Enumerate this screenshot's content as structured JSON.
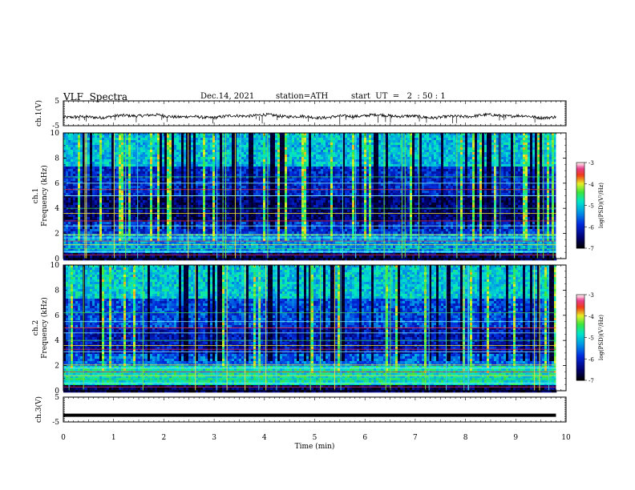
{
  "header": {
    "title": "VLF  Spectra",
    "date": "Dec.14, 2021",
    "station": "station=ATH",
    "start": "start  UT  =   2  : 50 : 1"
  },
  "chart_data": [
    {
      "type": "line",
      "panel": "ch1-waveform",
      "ylabel": "ch.1(V)",
      "yticks": [
        "5",
        "-5"
      ],
      "ylim": [
        -5,
        5
      ],
      "x_end_min": 9.8,
      "description_values": {
        "baseline_V": -1.2,
        "noise_amp_V": 0.6,
        "spike_min_V": -4.2
      }
    },
    {
      "type": "heatmap",
      "panel": "ch1-spectrogram",
      "ylabel": "Frequency  (kHz)",
      "channel_label": "ch.1",
      "yticks": [
        "0",
        "2",
        "4",
        "6",
        "8",
        "10"
      ],
      "ylim": [
        0,
        10
      ],
      "colorbar": {
        "label": "log(PSD)(V²/Hz)",
        "ticks": [
          "-3",
          "-4",
          "-5",
          "-6",
          "-7"
        ],
        "range": [
          -7,
          -3
        ]
      }
    },
    {
      "type": "heatmap",
      "panel": "ch2-spectrogram",
      "ylabel": "Frequency  (kHz)",
      "channel_label": "ch.2",
      "yticks": [
        "0",
        "2",
        "4",
        "6",
        "8",
        "10"
      ],
      "ylim": [
        0,
        10
      ],
      "colorbar": {
        "label": "log(PSD)(V²/Hz)",
        "ticks": [
          "-3",
          "-4",
          "-5",
          "-6",
          "-7"
        ],
        "range": [
          -7,
          -3
        ]
      }
    },
    {
      "type": "line",
      "panel": "ch3-waveform",
      "ylabel": "ch.3(V)",
      "yticks": [
        "5",
        "-5"
      ],
      "ylim": [
        -5,
        5
      ],
      "description_values": {
        "constant_V": -2.3
      }
    }
  ],
  "xaxis": {
    "label": "Time  (min)",
    "ticks": [
      "0",
      "1",
      "2",
      "3",
      "4",
      "5",
      "6",
      "7",
      "8",
      "9",
      "10"
    ],
    "range": [
      0,
      10
    ]
  }
}
